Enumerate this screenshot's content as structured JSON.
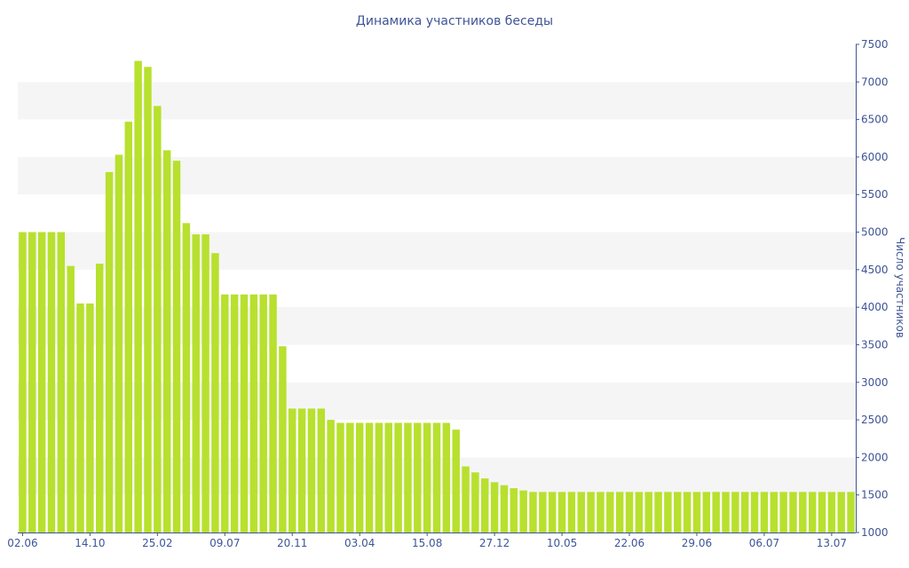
{
  "chart_data": {
    "type": "bar",
    "title": "Динамика участников беседы",
    "xlabel": "",
    "ylabel": "Число участников",
    "ylim": [
      1000,
      7500
    ],
    "yticks": [
      "1000",
      "1500",
      "2000",
      "2500",
      "3000",
      "3500",
      "4000",
      "4500",
      "5000",
      "5500",
      "6000",
      "6500",
      "7000",
      "7500"
    ],
    "y_axis_position": "right",
    "x_tick_labels": [
      {
        "label": "02.06",
        "index": 0
      },
      {
        "label": "14.10",
        "index": 7
      },
      {
        "label": "25.02",
        "index": 14
      },
      {
        "label": "09.07",
        "index": 21
      },
      {
        "label": "20.11",
        "index": 28
      },
      {
        "label": "03.04",
        "index": 35
      },
      {
        "label": "15.08",
        "index": 42
      },
      {
        "label": "27.12",
        "index": 49
      },
      {
        "label": "10.05",
        "index": 56
      },
      {
        "label": "22.06",
        "index": 63
      },
      {
        "label": "29.06",
        "index": 70
      },
      {
        "label": "06.07",
        "index": 77
      },
      {
        "label": "13.07",
        "index": 84
      }
    ],
    "values": [
      5000,
      5000,
      5000,
      5000,
      5000,
      4550,
      4050,
      4050,
      4580,
      5800,
      6030,
      6470,
      7280,
      7200,
      6680,
      6090,
      5950,
      5120,
      4970,
      4970,
      4720,
      4170,
      4170,
      4170,
      4170,
      4170,
      4170,
      3480,
      2650,
      2650,
      2650,
      2650,
      2500,
      2460,
      2460,
      2460,
      2460,
      2460,
      2460,
      2460,
      2460,
      2460,
      2460,
      2460,
      2460,
      2370,
      1880,
      1800,
      1720,
      1670,
      1630,
      1590,
      1560,
      1540,
      1540,
      1540,
      1540,
      1540,
      1540,
      1540,
      1540,
      1540,
      1540,
      1540,
      1540,
      1540,
      1540,
      1540,
      1540,
      1540,
      1540,
      1540,
      1540,
      1540,
      1540,
      1540,
      1540,
      1540,
      1540,
      1540,
      1540,
      1540,
      1540,
      1540,
      1540,
      1540,
      1540
    ],
    "grid": false,
    "alternating_bands": true,
    "legend": "none",
    "colors": {
      "bar": "#b8e02e",
      "band": "#f5f5f5",
      "text": "#3e5596",
      "axis": "#3e5596"
    }
  }
}
